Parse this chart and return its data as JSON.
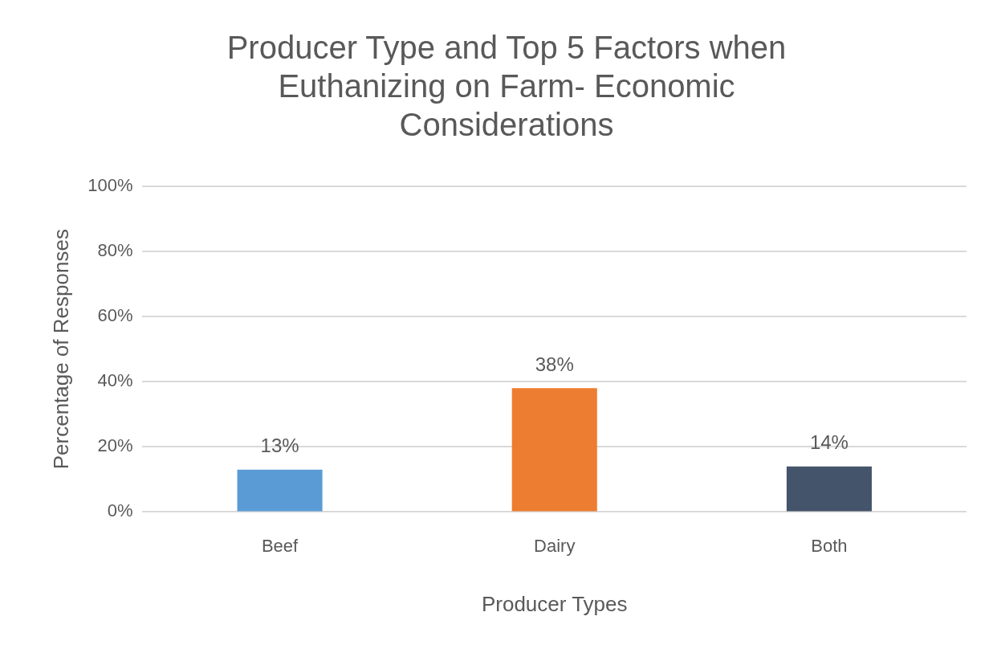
{
  "chart_data": {
    "type": "bar",
    "title": "Producer Type and Top 5 Factors when Euthanizing on Farm- Economic Considerations",
    "xlabel": "Producer Types",
    "ylabel": "Percentage of Responses",
    "categories": [
      "Beef",
      "Dairy",
      "Both"
    ],
    "values": [
      13,
      38,
      14
    ],
    "colors": [
      "#5b9bd5",
      "#ed7d31",
      "#44546a"
    ],
    "value_labels": [
      "13%",
      "38%",
      "14%"
    ],
    "ylim": [
      0,
      100
    ],
    "yticks": [
      {
        "value": 0,
        "label": "0%"
      },
      {
        "value": 20,
        "label": "20%"
      },
      {
        "value": 40,
        "label": "40%"
      },
      {
        "value": 60,
        "label": "60%"
      },
      {
        "value": 80,
        "label": "80%"
      },
      {
        "value": 100,
        "label": "100%"
      }
    ],
    "grid": "y",
    "legend": false
  }
}
